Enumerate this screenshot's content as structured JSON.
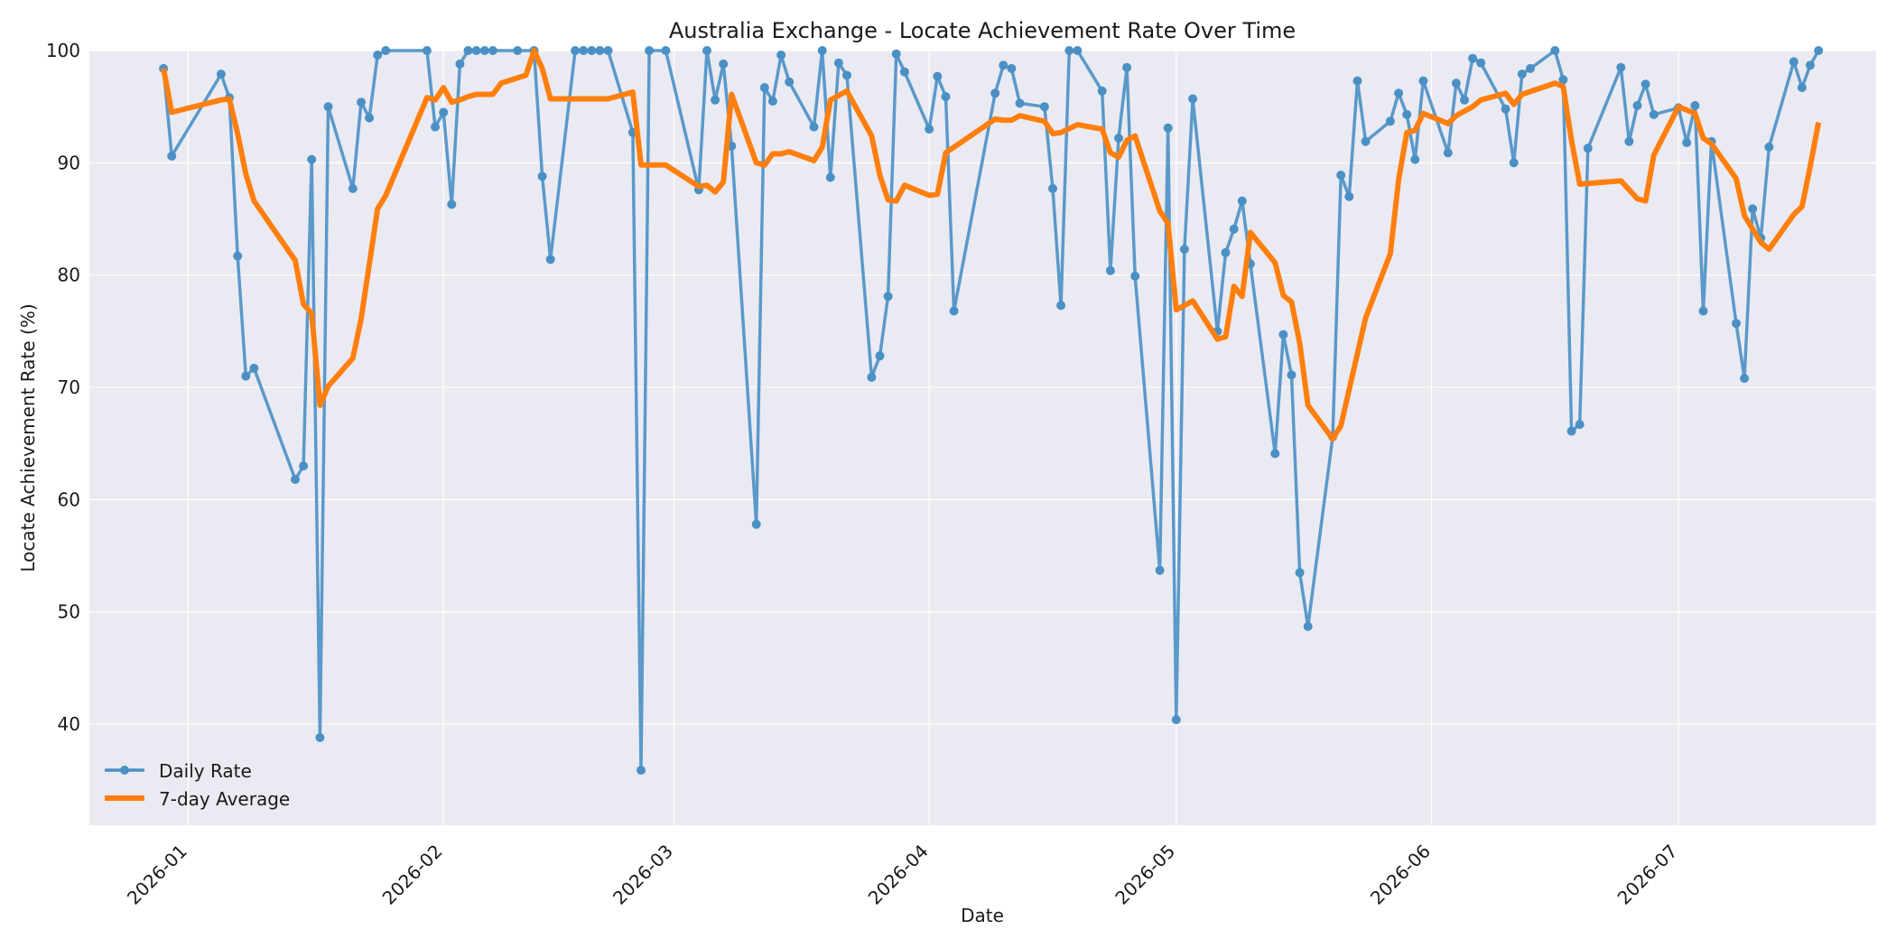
{
  "chart_data": {
    "type": "line",
    "title": "Australia Exchange - Locate Achievement Rate Over Time",
    "xlabel": "Date",
    "ylabel": "Locate Achievement Rate (%)",
    "xlim": [
      "2025-12-20",
      "2026-07-25"
    ],
    "ylim": [
      31,
      100
    ],
    "y_ticks": [
      40,
      50,
      60,
      70,
      80,
      90,
      100
    ],
    "x_ticks": [
      {
        "date": "2026-01-01",
        "label": "2026-01"
      },
      {
        "date": "2026-02-01",
        "label": "2026-02"
      },
      {
        "date": "2026-03-01",
        "label": "2026-03"
      },
      {
        "date": "2026-04-01",
        "label": "2026-04"
      },
      {
        "date": "2026-05-01",
        "label": "2026-05"
      },
      {
        "date": "2026-06-01",
        "label": "2026-06"
      },
      {
        "date": "2026-07-01",
        "label": "2026-07"
      }
    ],
    "grid": true,
    "legend_position": "bottom-left",
    "colors": {
      "daily": "#4a90c4",
      "avg": "#ff7f0e",
      "plot_bg": "#eaeaf2",
      "grid": "#ffffff"
    },
    "series": [
      {
        "name": "Daily Rate",
        "style": "line-markers",
        "points": [
          [
            "2025-12-29",
            98.4
          ],
          [
            "2025-12-30",
            90.6
          ],
          [
            "2026-01-05",
            97.9
          ],
          [
            "2026-01-06",
            95.8
          ],
          [
            "2026-01-07",
            81.7
          ],
          [
            "2026-01-08",
            71.0
          ],
          [
            "2026-01-09",
            71.7
          ],
          [
            "2026-01-14",
            61.8
          ],
          [
            "2026-01-15",
            63.0
          ],
          [
            "2026-01-16",
            90.3
          ],
          [
            "2026-01-17",
            38.8
          ],
          [
            "2026-01-18",
            95.0
          ],
          [
            "2026-01-21",
            87.7
          ],
          [
            "2026-01-22",
            95.4
          ],
          [
            "2026-01-23",
            94.0
          ],
          [
            "2026-01-24",
            99.6
          ],
          [
            "2026-01-25",
            100.0
          ],
          [
            "2026-01-30",
            100.0
          ],
          [
            "2026-01-31",
            93.2
          ],
          [
            "2026-02-01",
            94.5
          ],
          [
            "2026-02-02",
            86.3
          ],
          [
            "2026-02-03",
            98.8
          ],
          [
            "2026-02-04",
            100.0
          ],
          [
            "2026-02-05",
            100.0
          ],
          [
            "2026-02-06",
            100.0
          ],
          [
            "2026-02-07",
            100.0
          ],
          [
            "2026-02-10",
            100.0
          ],
          [
            "2026-02-12",
            100.0
          ],
          [
            "2026-02-13",
            88.8
          ],
          [
            "2026-02-14",
            81.4
          ],
          [
            "2026-02-17",
            100.0
          ],
          [
            "2026-02-18",
            100.0
          ],
          [
            "2026-02-19",
            100.0
          ],
          [
            "2026-02-20",
            100.0
          ],
          [
            "2026-02-21",
            100.0
          ],
          [
            "2026-02-24",
            92.7
          ],
          [
            "2026-02-25",
            35.9
          ],
          [
            "2026-02-26",
            100.0
          ],
          [
            "2026-02-28",
            100.0
          ],
          [
            "2026-03-04",
            87.6
          ],
          [
            "2026-03-05",
            100.0
          ],
          [
            "2026-03-06",
            95.6
          ],
          [
            "2026-03-07",
            98.8
          ],
          [
            "2026-03-08",
            91.5
          ],
          [
            "2026-03-11",
            57.8
          ],
          [
            "2026-03-12",
            96.7
          ],
          [
            "2026-03-13",
            95.5
          ],
          [
            "2026-03-14",
            99.6
          ],
          [
            "2026-03-15",
            97.2
          ],
          [
            "2026-03-18",
            93.2
          ],
          [
            "2026-03-19",
            100.0
          ],
          [
            "2026-03-20",
            88.7
          ],
          [
            "2026-03-21",
            98.9
          ],
          [
            "2026-03-22",
            97.8
          ],
          [
            "2026-03-25",
            70.9
          ],
          [
            "2026-03-26",
            72.8
          ],
          [
            "2026-03-27",
            78.1
          ],
          [
            "2026-03-28",
            99.7
          ],
          [
            "2026-03-29",
            98.1
          ],
          [
            "2026-04-01",
            93.0
          ],
          [
            "2026-04-02",
            97.7
          ],
          [
            "2026-04-03",
            95.9
          ],
          [
            "2026-04-04",
            76.8
          ],
          [
            "2026-04-09",
            96.2
          ],
          [
            "2026-04-10",
            98.7
          ],
          [
            "2026-04-11",
            98.4
          ],
          [
            "2026-04-12",
            95.3
          ],
          [
            "2026-04-15",
            95.0
          ],
          [
            "2026-04-16",
            87.7
          ],
          [
            "2026-04-17",
            77.3
          ],
          [
            "2026-04-18",
            100.0
          ],
          [
            "2026-04-19",
            100.0
          ],
          [
            "2026-04-22",
            96.4
          ],
          [
            "2026-04-23",
            80.4
          ],
          [
            "2026-04-24",
            92.2
          ],
          [
            "2026-04-25",
            98.5
          ],
          [
            "2026-04-26",
            79.9
          ],
          [
            "2026-04-29",
            53.7
          ],
          [
            "2026-04-30",
            93.1
          ],
          [
            "2026-05-01",
            40.4
          ],
          [
            "2026-05-02",
            82.3
          ],
          [
            "2026-05-03",
            95.7
          ],
          [
            "2026-05-06",
            75.0
          ],
          [
            "2026-05-07",
            82.0
          ],
          [
            "2026-05-08",
            84.1
          ],
          [
            "2026-05-09",
            86.6
          ],
          [
            "2026-05-10",
            81.0
          ],
          [
            "2026-05-13",
            64.1
          ],
          [
            "2026-05-14",
            74.7
          ],
          [
            "2026-05-15",
            71.1
          ],
          [
            "2026-05-16",
            53.5
          ],
          [
            "2026-05-17",
            48.7
          ],
          [
            "2026-05-20",
            65.6
          ],
          [
            "2026-05-21",
            88.9
          ],
          [
            "2026-05-22",
            87.0
          ],
          [
            "2026-05-23",
            97.3
          ],
          [
            "2026-05-24",
            91.9
          ],
          [
            "2026-05-27",
            93.7
          ],
          [
            "2026-05-28",
            96.2
          ],
          [
            "2026-05-29",
            94.3
          ],
          [
            "2026-05-30",
            90.3
          ],
          [
            "2026-05-31",
            97.3
          ],
          [
            "2026-06-03",
            90.9
          ],
          [
            "2026-06-04",
            97.1
          ],
          [
            "2026-06-05",
            95.6
          ],
          [
            "2026-06-06",
            99.3
          ],
          [
            "2026-06-07",
            98.9
          ],
          [
            "2026-06-10",
            94.8
          ],
          [
            "2026-06-11",
            90.0
          ],
          [
            "2026-06-12",
            97.9
          ],
          [
            "2026-06-13",
            98.4
          ],
          [
            "2026-06-16",
            100.0
          ],
          [
            "2026-06-17",
            97.4
          ],
          [
            "2026-06-18",
            66.1
          ],
          [
            "2026-06-19",
            66.7
          ],
          [
            "2026-06-20",
            91.3
          ],
          [
            "2026-06-24",
            98.5
          ],
          [
            "2026-06-25",
            91.9
          ],
          [
            "2026-06-26",
            95.1
          ],
          [
            "2026-06-27",
            97.0
          ],
          [
            "2026-06-28",
            94.3
          ],
          [
            "2026-07-01",
            94.9
          ],
          [
            "2026-07-02",
            91.8
          ],
          [
            "2026-07-03",
            95.1
          ],
          [
            "2026-07-04",
            76.8
          ],
          [
            "2026-07-05",
            91.9
          ],
          [
            "2026-07-08",
            75.7
          ],
          [
            "2026-07-09",
            70.8
          ],
          [
            "2026-07-10",
            85.9
          ],
          [
            "2026-07-11",
            83.3
          ],
          [
            "2026-07-12",
            91.4
          ],
          [
            "2026-07-15",
            99.0
          ],
          [
            "2026-07-16",
            96.7
          ],
          [
            "2026-07-17",
            98.7
          ],
          [
            "2026-07-18",
            100.0
          ]
        ]
      },
      {
        "name": "7-day Average",
        "style": "line",
        "points": [
          [
            "2025-12-29",
            98.4
          ],
          [
            "2025-12-30",
            94.5
          ],
          [
            "2026-01-05",
            95.6
          ],
          [
            "2026-01-06",
            95.7
          ],
          [
            "2026-01-07",
            92.6
          ],
          [
            "2026-01-08",
            89.0
          ],
          [
            "2026-01-09",
            86.6
          ],
          [
            "2026-01-14",
            81.3
          ],
          [
            "2026-01-15",
            77.4
          ],
          [
            "2026-01-16",
            76.6
          ],
          [
            "2026-01-17",
            68.4
          ],
          [
            "2026-01-18",
            70.1
          ],
          [
            "2026-01-21",
            72.6
          ],
          [
            "2026-01-22",
            76.1
          ],
          [
            "2026-01-23",
            81.0
          ],
          [
            "2026-01-24",
            85.9
          ],
          [
            "2026-01-25",
            87.1
          ],
          [
            "2026-01-30",
            95.8
          ],
          [
            "2026-01-31",
            95.6
          ],
          [
            "2026-02-01",
            96.7
          ],
          [
            "2026-02-02",
            95.4
          ],
          [
            "2026-02-03",
            95.6
          ],
          [
            "2026-02-04",
            95.9
          ],
          [
            "2026-02-05",
            96.1
          ],
          [
            "2026-02-06",
            96.1
          ],
          [
            "2026-02-07",
            96.1
          ],
          [
            "2026-02-08",
            97.1
          ],
          [
            "2026-02-11",
            97.8
          ],
          [
            "2026-02-12",
            100.0
          ],
          [
            "2026-02-13",
            98.4
          ],
          [
            "2026-02-14",
            95.7
          ],
          [
            "2026-02-17",
            95.7
          ],
          [
            "2026-02-21",
            95.7
          ],
          [
            "2026-02-24",
            96.3
          ],
          [
            "2026-02-25",
            89.8
          ],
          [
            "2026-02-28",
            89.8
          ],
          [
            "2026-03-04",
            87.9
          ],
          [
            "2026-03-05",
            88.0
          ],
          [
            "2026-03-06",
            87.4
          ],
          [
            "2026-03-07",
            88.3
          ],
          [
            "2026-03-08",
            96.1
          ],
          [
            "2026-03-11",
            90.0
          ],
          [
            "2026-03-12",
            89.8
          ],
          [
            "2026-03-13",
            90.8
          ],
          [
            "2026-03-14",
            90.8
          ],
          [
            "2026-03-15",
            91.0
          ],
          [
            "2026-03-18",
            90.2
          ],
          [
            "2026-03-19",
            91.4
          ],
          [
            "2026-03-20",
            95.6
          ],
          [
            "2026-03-22",
            96.4
          ],
          [
            "2026-03-25",
            92.4
          ],
          [
            "2026-03-26",
            88.9
          ],
          [
            "2026-03-27",
            86.7
          ],
          [
            "2026-03-28",
            86.6
          ],
          [
            "2026-03-29",
            88.0
          ],
          [
            "2026-04-01",
            87.1
          ],
          [
            "2026-04-02",
            87.2
          ],
          [
            "2026-04-03",
            90.9
          ],
          [
            "2026-04-09",
            93.9
          ],
          [
            "2026-04-10",
            93.8
          ],
          [
            "2026-04-11",
            93.8
          ],
          [
            "2026-04-12",
            94.2
          ],
          [
            "2026-04-15",
            93.7
          ],
          [
            "2026-04-16",
            92.6
          ],
          [
            "2026-04-17",
            92.7
          ],
          [
            "2026-04-19",
            93.4
          ],
          [
            "2026-04-22",
            93.0
          ],
          [
            "2026-04-23",
            90.9
          ],
          [
            "2026-04-24",
            90.5
          ],
          [
            "2026-04-25",
            92.0
          ],
          [
            "2026-04-26",
            92.4
          ],
          [
            "2026-04-29",
            85.7
          ],
          [
            "2026-04-30",
            84.6
          ],
          [
            "2026-05-01",
            76.9
          ],
          [
            "2026-05-03",
            77.7
          ],
          [
            "2026-05-06",
            74.3
          ],
          [
            "2026-05-07",
            74.5
          ],
          [
            "2026-05-08",
            79.0
          ],
          [
            "2026-05-09",
            78.1
          ],
          [
            "2026-05-10",
            83.8
          ],
          [
            "2026-05-13",
            81.1
          ],
          [
            "2026-05-14",
            78.2
          ],
          [
            "2026-05-15",
            77.6
          ],
          [
            "2026-05-16",
            73.9
          ],
          [
            "2026-05-17",
            68.4
          ],
          [
            "2026-05-20",
            65.4
          ],
          [
            "2026-05-21",
            66.6
          ],
          [
            "2026-05-24",
            76.2
          ],
          [
            "2026-05-27",
            81.9
          ],
          [
            "2026-05-28",
            88.5
          ],
          [
            "2026-05-29",
            92.7
          ],
          [
            "2026-05-30",
            92.9
          ],
          [
            "2026-05-31",
            94.4
          ],
          [
            "2026-06-03",
            93.5
          ],
          [
            "2026-06-04",
            94.2
          ],
          [
            "2026-06-05",
            94.6
          ],
          [
            "2026-06-06",
            95.0
          ],
          [
            "2026-06-07",
            95.6
          ],
          [
            "2026-06-10",
            96.2
          ],
          [
            "2026-06-11",
            95.2
          ],
          [
            "2026-06-12",
            96.1
          ],
          [
            "2026-06-16",
            97.1
          ],
          [
            "2026-06-17",
            96.8
          ],
          [
            "2026-06-18",
            92.0
          ],
          [
            "2026-06-19",
            88.1
          ],
          [
            "2026-06-24",
            88.4
          ],
          [
            "2026-06-26",
            86.8
          ],
          [
            "2026-06-27",
            86.6
          ],
          [
            "2026-06-28",
            90.7
          ],
          [
            "2026-07-01",
            95.0
          ],
          [
            "2026-07-03",
            94.4
          ],
          [
            "2026-07-04",
            92.2
          ],
          [
            "2026-07-05",
            91.7
          ],
          [
            "2026-07-08",
            88.6
          ],
          [
            "2026-07-09",
            85.3
          ],
          [
            "2026-07-11",
            82.9
          ],
          [
            "2026-07-12",
            82.3
          ],
          [
            "2026-07-15",
            85.4
          ],
          [
            "2026-07-16",
            86.1
          ],
          [
            "2026-07-17",
            89.7
          ],
          [
            "2026-07-18",
            93.6
          ]
        ]
      }
    ]
  }
}
